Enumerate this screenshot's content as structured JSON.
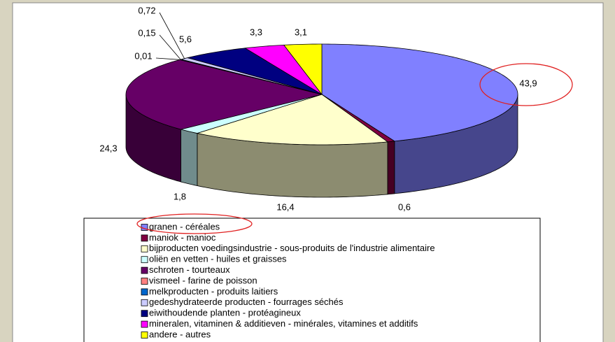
{
  "chart_data": {
    "type": "pie3d",
    "categories": [
      "granen - céréales",
      "maniok - manioc",
      "bijproducten voedingsindustrie - sous-produits de l'industrie alimentaire",
      "oliën en vetten - huiles et graisses",
      "schroten - tourteaux",
      "vismeel - farine de poisson",
      "melkproducten - produits laitiers",
      "gedeshydrateerde producten - fourrages séchés",
      "eiwithoudende planten - protéagineux",
      "mineralen, vitaminen & additieven - minérales, vitamines et additifs",
      "andere - autres"
    ],
    "values": [
      43.9,
      0.6,
      16.4,
      1.8,
      24.3,
      0.01,
      0.15,
      0.72,
      5.6,
      3.3,
      3.1
    ],
    "value_labels": [
      "43,9",
      "0,6",
      "16,4",
      "1,8",
      "24,3",
      "0,01",
      "0,15",
      "0,72",
      "5,6",
      "3,3",
      "3,1"
    ],
    "colors": [
      "#8080ff",
      "#800040",
      "#ffffcc",
      "#ccffff",
      "#660066",
      "#ff8080",
      "#0066cc",
      "#ccccff",
      "#000080",
      "#ff00ff",
      "#ffff00"
    ],
    "legend": "bottom"
  }
}
